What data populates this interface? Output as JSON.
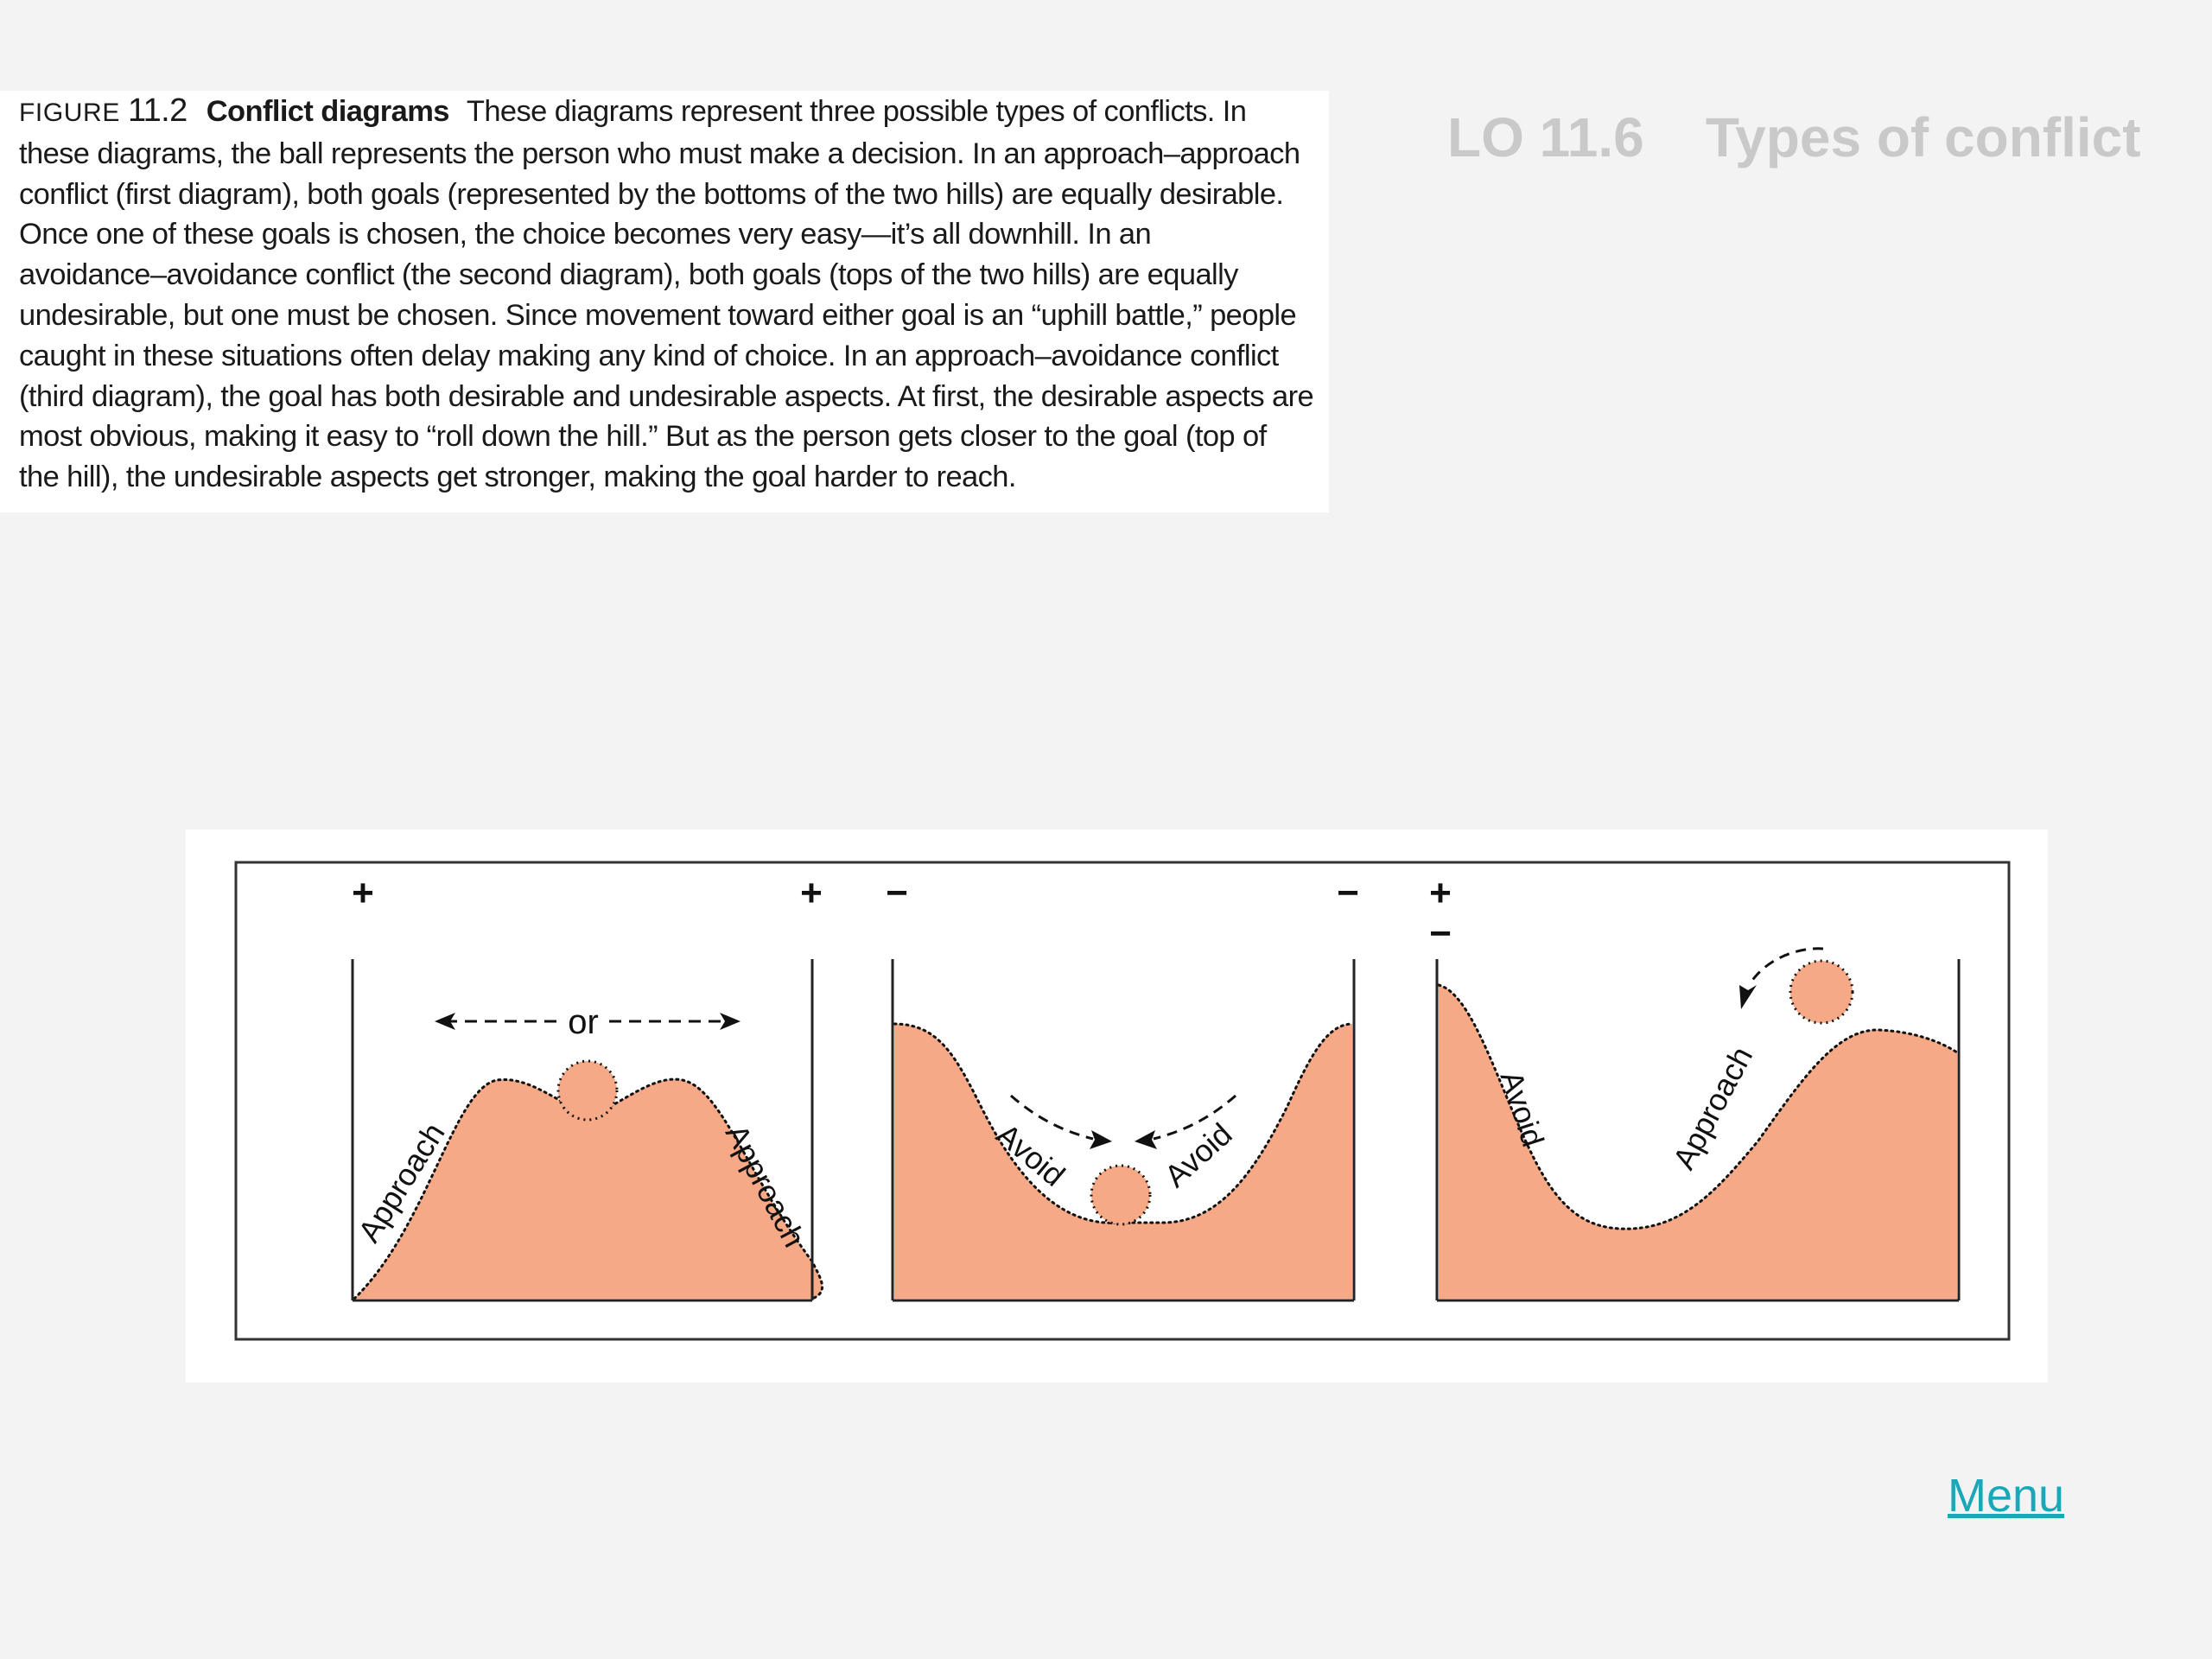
{
  "slide": {
    "title": "LO 11.6    Types of conflict",
    "menu_label": "Menu"
  },
  "caption": {
    "prefix": "FIGURE",
    "number": "11.2",
    "title": "Conflict diagrams",
    "body": "These diagrams represent three possible types of conflicts. In\nthese diagrams, the ball represents the person who must make a decision. In an approach–approach\nconflict (first diagram), both goals (represented by the bottoms of the two hills) are equally desirable.\nOnce one of these goals is chosen, the choice becomes very easy—it’s all downhill. In an\navoidance–avoidance conflict (the second diagram), both goals (tops of the two hills) are equally\nundesirable, but one must be chosen. Since movement toward either goal is an “uphill battle,” people\ncaught in these situations often delay making any kind of choice. In an approach–avoidance conflict\n(third diagram), the goal has both desirable and undesirable aspects. At first, the desirable aspects are\nmost obvious, making it easy to “roll down the hill.” But as the person gets closer to the goal (top of\nthe hill), the undesirable aspects get stronger, making the goal harder to reach."
  },
  "diagram": {
    "fill_color": "#f6a986",
    "panel1": {
      "left_sign": "+",
      "right_sign": "+",
      "arrow_label": "or",
      "left_label": "Approach",
      "right_label": "Approach"
    },
    "panel2": {
      "left_sign": "−",
      "right_sign": "−",
      "left_label": "Avoid",
      "right_label": "Avoid"
    },
    "panel3": {
      "top_sign": "+",
      "bottom_sign": "−",
      "left_label": "Avoid",
      "right_label": "Approach"
    }
  }
}
